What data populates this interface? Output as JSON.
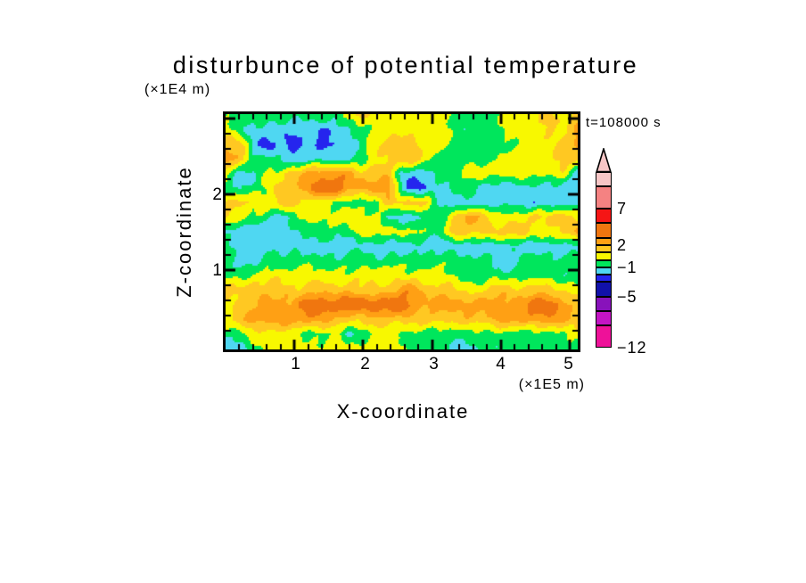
{
  "chart_data": {
    "type": "heatmap",
    "title": "disturbunce of potential temperature",
    "time_annotation": "t=108000 s",
    "xlabel": "X-coordinate",
    "zlabel": "Z-coordinate",
    "x_unit": "(×1E5 m)",
    "z_unit": "(×1E4 m)",
    "x_range": [
      0,
      5.12
    ],
    "z_range": [
      0,
      3.06
    ],
    "x_major_ticks": [
      1,
      2,
      3,
      4,
      5
    ],
    "z_major_ticks": [
      1,
      2
    ],
    "minor_tick_step": 0.2,
    "x_tick_labels": [
      "1",
      "2",
      "3",
      "4",
      "5"
    ],
    "z_tick_labels": [
      "2",
      "1"
    ],
    "levels": [
      -12,
      -9,
      -7,
      -5,
      -3,
      -2,
      -1,
      0,
      1,
      2,
      3,
      5,
      7,
      10,
      12
    ],
    "colors": [
      "#ee1199",
      "#c414c4",
      "#8812bb",
      "#1111aa",
      "#2525ee",
      "#4fd7f2",
      "#00e65c",
      "#f8f800",
      "#ffc822",
      "#ffa014",
      "#f0760f",
      "#f51515",
      "#f58282",
      "#f7c6c6"
    ],
    "overflow_arrow_color": "#f7c6c6",
    "colorbar_labels": [
      {
        "text": "7",
        "level": 7
      },
      {
        "text": "2",
        "level": 2
      },
      {
        "text": "−1",
        "level": -1
      },
      {
        "text": "−5",
        "level": -5
      },
      {
        "text": "−12",
        "level": -12
      }
    ],
    "grid_cols": 27,
    "grid_rows": 17,
    "values": [
      [
        -0.5,
        -0.5,
        -0.5,
        -0.5,
        -0.5,
        -0.5,
        -0.5,
        -0.5,
        -0.5,
        0.5,
        1.5,
        0.5,
        0.5,
        0.5,
        0.5,
        0.5,
        0.5,
        -0.5,
        -0.5,
        -0.5,
        -0.5,
        0.5,
        0.5,
        0.5,
        1.5,
        0.5,
        1.5
      ],
      [
        0.5,
        -0.5,
        -1.5,
        -1.5,
        -1.5,
        -1.5,
        -1.5,
        -2.2,
        -1.5,
        -1.5,
        -0.5,
        0.5,
        0.5,
        0.5,
        0.5,
        0.5,
        0.5,
        -0.5,
        -0.5,
        -0.5,
        -0.5,
        0.5,
        0.5,
        0.5,
        1.5,
        0.5,
        1.8
      ],
      [
        1.5,
        1.5,
        -1.5,
        -2.6,
        -1.5,
        -2.6,
        -1.5,
        -2.6,
        -1.8,
        -1.5,
        -0.5,
        0.5,
        1.5,
        1.5,
        1.5,
        0.5,
        0.5,
        -0.5,
        -0.5,
        -0.5,
        -0.5,
        0.0,
        0.5,
        0.5,
        0.5,
        1.5,
        2.6
      ],
      [
        2.6,
        1.5,
        -0.5,
        -0.5,
        -1.5,
        -1.5,
        -1.5,
        -1.5,
        -1.5,
        -1.2,
        -0.5,
        0.5,
        1.5,
        1.5,
        1.5,
        0.5,
        -0.5,
        -0.5,
        -0.5,
        -0.5,
        -0.5,
        0.5,
        0.5,
        0.5,
        0.5,
        1.5,
        1.5
      ],
      [
        0.5,
        -1.5,
        -1.5,
        0.5,
        0.5,
        1.5,
        2.5,
        2.5,
        2.5,
        2.5,
        1.5,
        1.5,
        1.5,
        -1.5,
        -1.5,
        -1.5,
        -0.5,
        -0.5,
        0.5,
        0.5,
        0.5,
        0.5,
        0.5,
        0.5,
        0.5,
        0.5,
        -1.5
      ],
      [
        -0.5,
        -1.5,
        -0.5,
        0.5,
        1.5,
        1.5,
        2.5,
        4.2,
        4.2,
        2.5,
        2.5,
        2.5,
        2.5,
        -1.5,
        -2.6,
        -1.5,
        -1.5,
        -0.5,
        -0.5,
        -1.5,
        -1.5,
        -1.5,
        -1.5,
        -1.5,
        -1.5,
        -1.5,
        -1.5
      ],
      [
        1.5,
        1.5,
        0.5,
        0.5,
        1.5,
        1.5,
        0.5,
        0.5,
        -0.5,
        -0.5,
        -0.5,
        -0.5,
        1.5,
        1.5,
        1.5,
        0.5,
        -1.5,
        -1.5,
        -1.5,
        -1.5,
        -1.5,
        -1.5,
        -1.5,
        -1.5,
        -1.5,
        -1.5,
        -1.5
      ],
      [
        1.5,
        0.5,
        -0.5,
        -0.5,
        -1.5,
        -0.5,
        0.5,
        0.5,
        0.5,
        0.5,
        0.5,
        0.5,
        -1.5,
        -1.5,
        -1.5,
        -0.5,
        -0.5,
        1.5,
        2.5,
        1.5,
        0.5,
        0.5,
        0.5,
        1.5,
        1.5,
        1.5,
        0.5
      ],
      [
        -1.5,
        -1.5,
        -1.5,
        -1.5,
        -1.5,
        -1.5,
        -0.5,
        -0.5,
        -0.5,
        -0.5,
        0.5,
        0.5,
        0.5,
        0.5,
        0.5,
        -0.5,
        -0.5,
        1.5,
        1.5,
        1.5,
        1.5,
        1.5,
        1.5,
        0.5,
        0.5,
        1.5,
        2.5
      ],
      [
        -0.5,
        -1.5,
        -1.5,
        -1.5,
        -1.5,
        -1.5,
        -1.5,
        -1.5,
        -1.5,
        -1.5,
        -1.5,
        -1.5,
        -1.5,
        -1.5,
        -1.5,
        -1.5,
        -1.5,
        -1.5,
        -1.5,
        -1.5,
        -1.5,
        -1.5,
        -1.5,
        -1.5,
        -1.5,
        -1.5,
        -1.5
      ],
      [
        -0.5,
        -1.5,
        -1.5,
        -0.5,
        -0.5,
        -0.5,
        -0.5,
        -0.5,
        -0.5,
        -0.5,
        -0.5,
        -0.5,
        -0.5,
        -0.5,
        -0.5,
        -0.5,
        -0.5,
        -0.5,
        -0.5,
        -0.5,
        -1.5,
        -1.5,
        -0.5,
        -0.5,
        -0.5,
        -0.5,
        -0.5
      ],
      [
        -0.5,
        -0.5,
        0.5,
        0.5,
        0.5,
        0.5,
        0.5,
        0.5,
        0.5,
        0.5,
        0.5,
        0.5,
        0.5,
        0.5,
        0.5,
        0.5,
        0.5,
        -0.5,
        -0.5,
        -0.5,
        -0.5,
        -0.5,
        -0.5,
        -0.5,
        -0.5,
        -0.5,
        -0.5
      ],
      [
        1.5,
        1.5,
        1.5,
        1.5,
        1.5,
        1.5,
        1.5,
        1.5,
        1.5,
        1.5,
        1.5,
        1.5,
        1.5,
        2.5,
        2.5,
        1.5,
        1.5,
        1.5,
        0.5,
        0.5,
        1.5,
        1.5,
        1.5,
        1.5,
        1.5,
        0.5,
        0.5
      ],
      [
        0.5,
        1.5,
        1.5,
        2.5,
        2.5,
        2.5,
        4.0,
        4.0,
        4.0,
        4.0,
        4.0,
        4.0,
        4.0,
        4.0,
        2.5,
        2.5,
        2.5,
        2.5,
        2.5,
        2.5,
        2.5,
        2.5,
        2.5,
        4.0,
        4.0,
        2.5,
        1.5
      ],
      [
        0.5,
        1.5,
        2.5,
        2.5,
        2.5,
        2.5,
        2.5,
        2.5,
        1.5,
        1.5,
        1.5,
        1.5,
        1.5,
        1.5,
        1.5,
        1.5,
        1.5,
        1.5,
        1.5,
        1.5,
        2.5,
        2.5,
        2.5,
        2.5,
        2.5,
        2.5,
        1.5
      ],
      [
        -0.5,
        -0.5,
        0.5,
        0.5,
        0.5,
        0.5,
        -0.5,
        -0.5,
        0.5,
        -1.5,
        -0.5,
        0.5,
        0.5,
        -0.5,
        -0.5,
        -0.5,
        -0.5,
        -0.5,
        -0.5,
        -0.5,
        -0.5,
        -0.5,
        -0.5,
        -0.5,
        -0.5,
        -0.5,
        0.5
      ],
      [
        -1.5,
        -1.5,
        -0.5,
        0.5,
        0.5,
        0.5,
        0.5,
        0.5,
        0.5,
        0.5,
        0.5,
        0.5,
        0.5,
        0.5,
        -0.5,
        -0.5,
        -0.5,
        -1.5,
        -1.5,
        -0.5,
        -0.5,
        -0.5,
        -0.5,
        -0.5,
        -0.5,
        -0.5,
        -0.5
      ]
    ]
  }
}
